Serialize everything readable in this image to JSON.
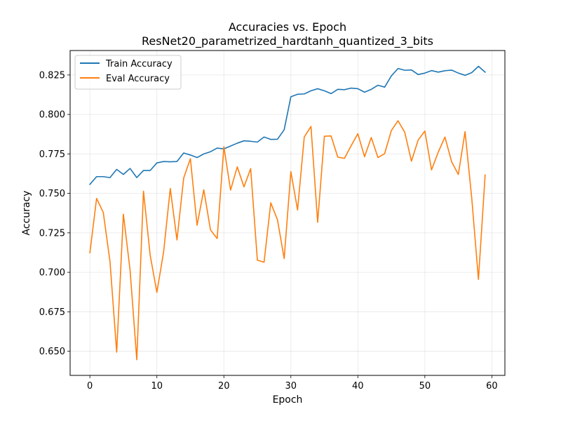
{
  "chart_data": {
    "type": "line",
    "title": "Accuracies vs. Epoch",
    "subtitle": "ResNet20_parametrized_hardtanh_quantized_3_bits",
    "xlabel": "Epoch",
    "ylabel": "Accuracy",
    "xlim": [
      -2.95,
      61.95
    ],
    "ylim": [
      0.6347,
      0.8405
    ],
    "xticks": [
      0,
      10,
      20,
      30,
      40,
      50,
      60
    ],
    "yticks": [
      0.65,
      0.675,
      0.7,
      0.725,
      0.75,
      0.775,
      0.8,
      0.825
    ],
    "ytick_labels": [
      "0.650",
      "0.675",
      "0.700",
      "0.725",
      "0.750",
      "0.775",
      "0.800",
      "0.825"
    ],
    "grid": true,
    "legend_position": "top-left",
    "x": [
      0,
      1,
      2,
      3,
      4,
      5,
      6,
      7,
      8,
      9,
      10,
      11,
      12,
      13,
      14,
      15,
      16,
      17,
      18,
      19,
      20,
      21,
      22,
      23,
      24,
      25,
      26,
      27,
      28,
      29,
      30,
      31,
      32,
      33,
      34,
      35,
      36,
      37,
      38,
      39,
      40,
      41,
      42,
      43,
      44,
      45,
      46,
      47,
      48,
      49,
      50,
      51,
      52,
      53,
      54,
      55,
      56,
      57,
      58,
      59
    ],
    "series": [
      {
        "name": "Train Accuracy",
        "color": "#1f77b4",
        "values": [
          0.7557,
          0.7606,
          0.7606,
          0.76,
          0.7652,
          0.762,
          0.7658,
          0.76,
          0.7645,
          0.7645,
          0.7693,
          0.7702,
          0.77,
          0.7702,
          0.7756,
          0.7743,
          0.7727,
          0.775,
          0.7764,
          0.7787,
          0.7782,
          0.78,
          0.7818,
          0.7833,
          0.783,
          0.7825,
          0.7857,
          0.7842,
          0.7843,
          0.7903,
          0.8112,
          0.8128,
          0.813,
          0.815,
          0.8163,
          0.815,
          0.8132,
          0.8159,
          0.8157,
          0.8167,
          0.8163,
          0.8141,
          0.8159,
          0.8185,
          0.8173,
          0.8244,
          0.8291,
          0.828,
          0.8282,
          0.8253,
          0.8262,
          0.8278,
          0.8268,
          0.8277,
          0.8281,
          0.8262,
          0.8248,
          0.8265,
          0.8305,
          0.8268
        ]
      },
      {
        "name": "Eval Accuracy",
        "color": "#ff7f0e",
        "values": [
          0.7124,
          0.7468,
          0.7379,
          0.7069,
          0.6494,
          0.7368,
          0.7013,
          0.6446,
          0.7514,
          0.7108,
          0.6873,
          0.7128,
          0.7531,
          0.7205,
          0.7597,
          0.772,
          0.7298,
          0.7523,
          0.7269,
          0.7214,
          0.7796,
          0.7521,
          0.7668,
          0.7541,
          0.7657,
          0.7077,
          0.7064,
          0.744,
          0.7333,
          0.7087,
          0.7638,
          0.7395,
          0.7857,
          0.7924,
          0.7317,
          0.7862,
          0.7864,
          0.773,
          0.7722,
          0.7802,
          0.7878,
          0.7732,
          0.7854,
          0.7727,
          0.7752,
          0.7898,
          0.796,
          0.7887,
          0.7704,
          0.7838,
          0.7895,
          0.7649,
          0.7761,
          0.7857,
          0.77,
          0.762,
          0.7891,
          0.747,
          0.6955,
          0.7617
        ]
      }
    ]
  }
}
